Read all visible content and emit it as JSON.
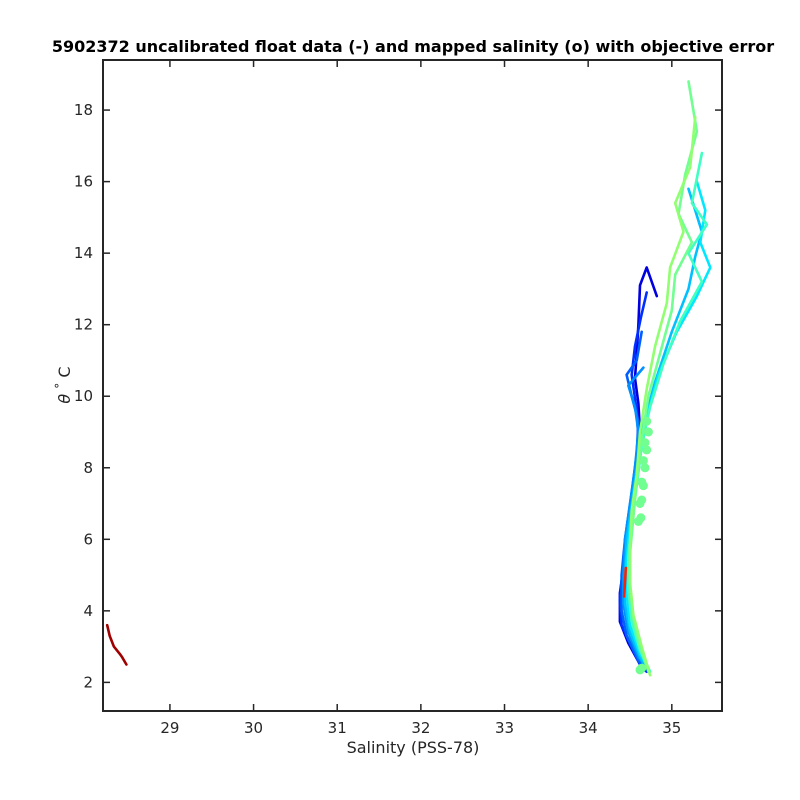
{
  "chart_data": {
    "type": "line",
    "title": "5902372 uncalibrated float data (-) and mapped salinity (o) with objective error",
    "xlabel": "Salinity (PSS-78)",
    "ylabel_symbol": "θ",
    "ylabel_degree": "°",
    "ylabel_unit": "C",
    "xlim": [
      28.2,
      35.6
    ],
    "ylim": [
      1.2,
      19.4
    ],
    "xticks": [
      29,
      30,
      31,
      32,
      33,
      34,
      35
    ],
    "yticks": [
      2,
      4,
      6,
      8,
      10,
      12,
      14,
      16,
      18
    ],
    "grid": false,
    "colormap": [
      "#00008f",
      "#0000ff",
      "#0080ff",
      "#00ffff",
      "#80ff80",
      "#ffff00",
      "#ff8000",
      "#ff0000",
      "#800000"
    ],
    "series": [
      {
        "color": "#0000e0",
        "points": [
          [
            34.82,
            12.8
          ],
          [
            34.7,
            13.6
          ],
          [
            34.62,
            13.1
          ],
          [
            34.6,
            12.0
          ],
          [
            34.58,
            11.2
          ],
          [
            34.56,
            10.5
          ],
          [
            34.6,
            9.8
          ],
          [
            34.62,
            9.0
          ],
          [
            34.58,
            8.2
          ],
          [
            34.54,
            7.0
          ],
          [
            34.44,
            5.5
          ],
          [
            34.38,
            4.5
          ],
          [
            34.38,
            3.7
          ],
          [
            34.48,
            3.1
          ],
          [
            34.62,
            2.5
          ],
          [
            34.72,
            2.3
          ]
        ]
      },
      {
        "color": "#0030ff",
        "points": [
          [
            34.7,
            12.9
          ],
          [
            34.63,
            12.2
          ],
          [
            34.56,
            11.4
          ],
          [
            34.52,
            10.6
          ],
          [
            34.58,
            9.6
          ],
          [
            34.6,
            8.8
          ],
          [
            34.56,
            7.8
          ],
          [
            34.5,
            6.8
          ],
          [
            34.42,
            5.4
          ],
          [
            34.38,
            4.3
          ],
          [
            34.4,
            3.6
          ],
          [
            34.52,
            3.0
          ],
          [
            34.64,
            2.4
          ],
          [
            34.7,
            2.3
          ]
        ]
      },
      {
        "color": "#0060ff",
        "points": [
          [
            34.64,
            11.8
          ],
          [
            34.58,
            11.0
          ],
          [
            34.46,
            10.6
          ],
          [
            34.52,
            10.0
          ],
          [
            34.6,
            9.3
          ],
          [
            34.58,
            8.4
          ],
          [
            34.52,
            7.3
          ],
          [
            34.44,
            6.0
          ],
          [
            34.4,
            5.0
          ],
          [
            34.4,
            4.0
          ],
          [
            34.46,
            3.3
          ],
          [
            34.6,
            2.6
          ],
          [
            34.68,
            2.4
          ]
        ]
      },
      {
        "color": "#0090ff",
        "points": [
          [
            34.66,
            10.8
          ],
          [
            34.48,
            10.3
          ],
          [
            34.56,
            9.7
          ],
          [
            34.6,
            9.0
          ],
          [
            34.56,
            8.0
          ],
          [
            34.5,
            7.0
          ],
          [
            34.44,
            6.0
          ],
          [
            34.42,
            5.0
          ],
          [
            34.42,
            4.2
          ],
          [
            34.48,
            3.4
          ],
          [
            34.6,
            2.7
          ],
          [
            34.7,
            2.4
          ]
        ]
      },
      {
        "color": "#00c0ff",
        "points": [
          [
            35.2,
            15.8
          ],
          [
            35.36,
            14.6
          ],
          [
            35.28,
            13.9
          ],
          [
            35.2,
            13.0
          ],
          [
            35.0,
            11.8
          ],
          [
            34.8,
            10.4
          ],
          [
            34.66,
            9.2
          ],
          [
            34.58,
            8.0
          ],
          [
            34.52,
            7.0
          ],
          [
            34.46,
            6.0
          ],
          [
            34.44,
            5.0
          ],
          [
            34.44,
            4.2
          ],
          [
            34.5,
            3.4
          ],
          [
            34.62,
            2.7
          ],
          [
            34.7,
            2.4
          ]
        ]
      },
      {
        "color": "#00e8ff",
        "points": [
          [
            35.3,
            16.0
          ],
          [
            35.4,
            15.2
          ],
          [
            35.34,
            14.3
          ],
          [
            35.46,
            13.6
          ],
          [
            35.3,
            12.8
          ],
          [
            35.06,
            11.8
          ],
          [
            34.84,
            10.6
          ],
          [
            34.7,
            9.4
          ],
          [
            34.62,
            8.4
          ],
          [
            34.56,
            7.4
          ],
          [
            34.5,
            6.4
          ],
          [
            34.46,
            5.4
          ],
          [
            34.46,
            4.5
          ],
          [
            34.5,
            3.6
          ],
          [
            34.62,
            2.8
          ],
          [
            34.72,
            2.4
          ]
        ]
      },
      {
        "color": "#40ffc0",
        "points": [
          [
            35.36,
            16.8
          ],
          [
            35.24,
            15.4
          ],
          [
            35.42,
            14.8
          ],
          [
            35.2,
            14.0
          ],
          [
            35.36,
            13.2
          ],
          [
            35.1,
            12.1
          ],
          [
            34.9,
            10.9
          ],
          [
            34.74,
            9.7
          ],
          [
            34.64,
            8.6
          ],
          [
            34.58,
            7.5
          ],
          [
            34.52,
            6.5
          ],
          [
            34.48,
            5.5
          ],
          [
            34.48,
            4.6
          ],
          [
            34.52,
            3.7
          ],
          [
            34.62,
            2.9
          ],
          [
            34.74,
            2.3
          ]
        ]
      },
      {
        "color": "#70ff90",
        "points": [
          [
            35.2,
            18.8
          ],
          [
            35.3,
            17.4
          ],
          [
            35.16,
            16.2
          ],
          [
            35.08,
            15.1
          ],
          [
            35.24,
            14.3
          ],
          [
            35.04,
            13.4
          ],
          [
            35.0,
            12.4
          ],
          [
            34.86,
            11.2
          ],
          [
            34.72,
            10.0
          ],
          [
            34.64,
            8.8
          ],
          [
            34.58,
            7.6
          ],
          [
            34.54,
            6.6
          ],
          [
            34.5,
            5.6
          ],
          [
            34.5,
            4.7
          ],
          [
            34.54,
            3.8
          ],
          [
            34.62,
            3.0
          ],
          [
            34.72,
            2.3
          ]
        ]
      },
      {
        "color": "#90ff70",
        "points": [
          [
            35.28,
            17.8
          ],
          [
            35.22,
            16.4
          ],
          [
            35.04,
            15.4
          ],
          [
            35.14,
            14.6
          ],
          [
            34.98,
            13.6
          ],
          [
            34.94,
            12.6
          ],
          [
            34.8,
            11.4
          ],
          [
            34.7,
            10.2
          ],
          [
            34.62,
            9.0
          ],
          [
            34.58,
            7.8
          ],
          [
            34.52,
            6.8
          ],
          [
            34.5,
            5.8
          ],
          [
            34.5,
            4.8
          ],
          [
            34.54,
            3.9
          ],
          [
            34.64,
            3.0
          ],
          [
            34.74,
            2.2
          ]
        ]
      },
      {
        "color": "#ff2000",
        "points": [
          [
            34.45,
            5.2
          ],
          [
            34.44,
            4.8
          ],
          [
            34.43,
            4.4
          ]
        ]
      },
      {
        "color": "#a00000",
        "points": [
          [
            28.25,
            3.6
          ],
          [
            28.28,
            3.3
          ],
          [
            28.33,
            3.0
          ],
          [
            28.4,
            2.8
          ],
          [
            28.43,
            2.7
          ],
          [
            28.48,
            2.5
          ]
        ]
      }
    ],
    "mapped_salinity": {
      "color": "#70ff90",
      "points": [
        [
          34.62,
          2.35
        ],
        [
          34.64,
          2.4
        ],
        [
          34.6,
          6.5
        ],
        [
          34.63,
          6.6
        ],
        [
          34.62,
          7.0
        ],
        [
          34.64,
          7.1
        ],
        [
          34.66,
          7.5
        ],
        [
          34.64,
          7.6
        ],
        [
          34.68,
          8.0
        ],
        [
          34.66,
          8.2
        ],
        [
          34.7,
          8.5
        ],
        [
          34.68,
          8.7
        ],
        [
          34.72,
          9.0
        ],
        [
          34.7,
          9.3
        ]
      ]
    }
  }
}
